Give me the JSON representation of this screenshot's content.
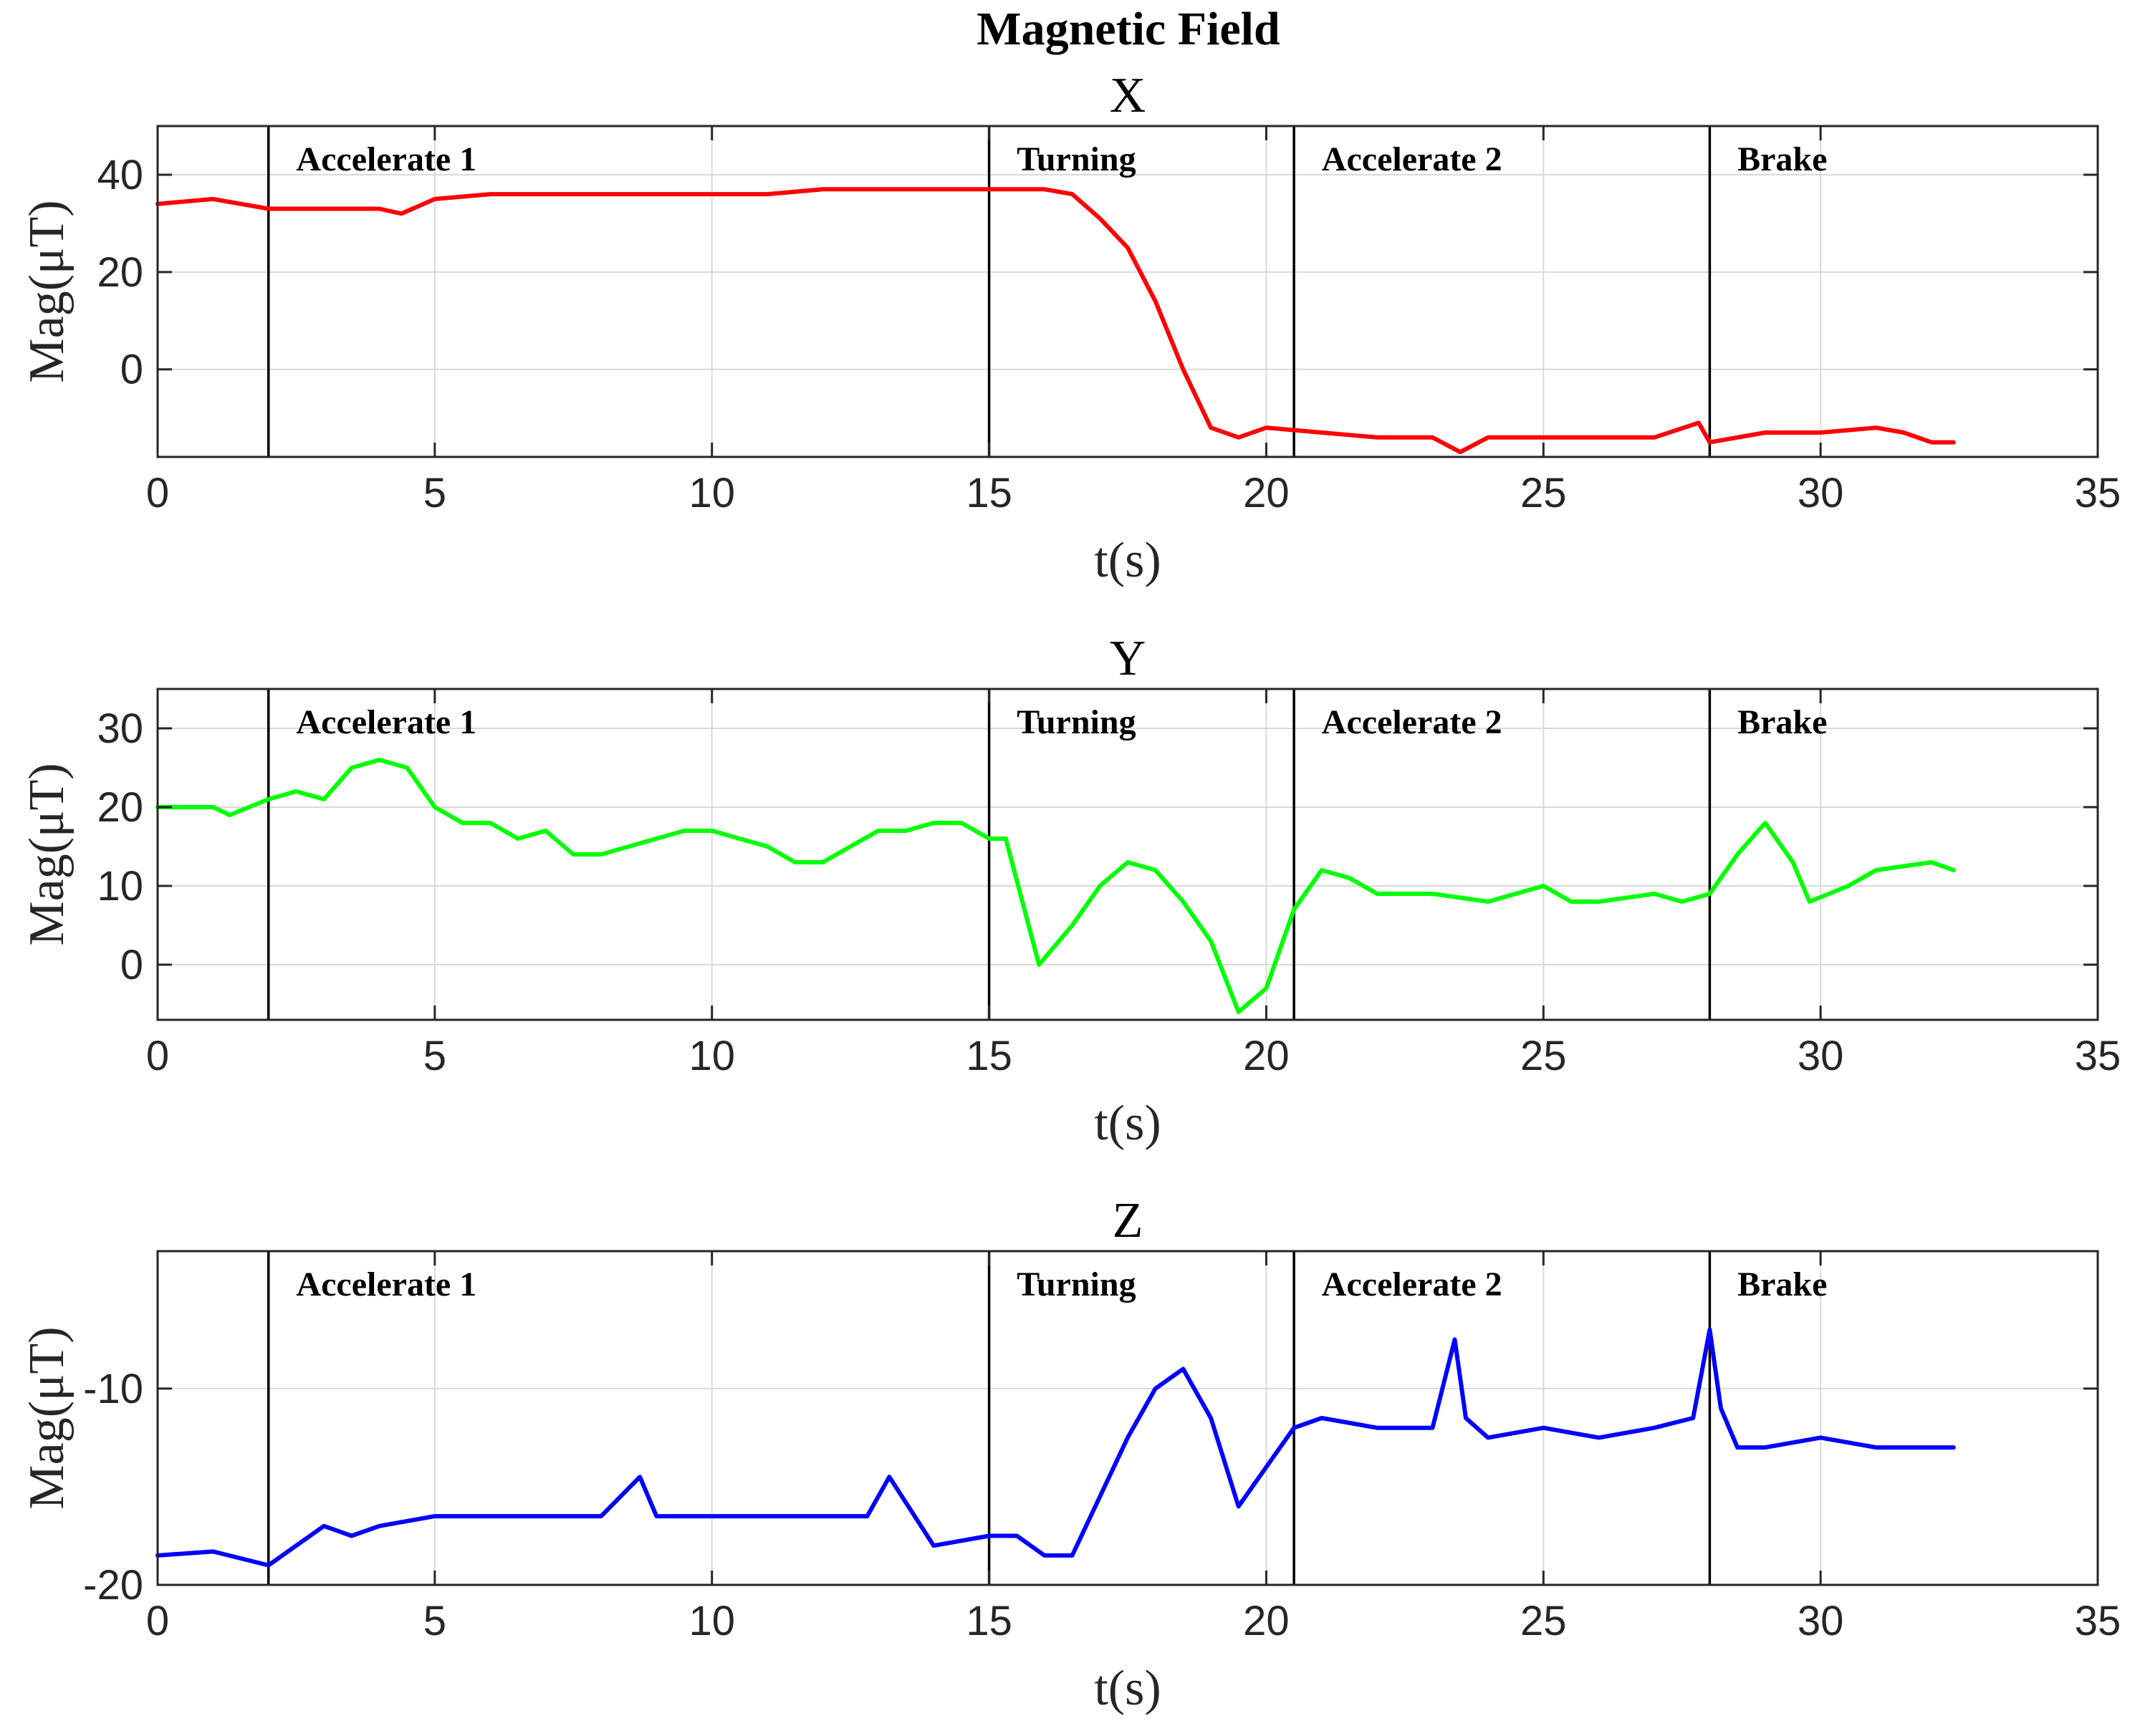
{
  "figure_title": "Magnetic Field",
  "chart_data": [
    {
      "type": "line",
      "title": "X",
      "xlabel": "t(s)",
      "ylabel": "Mag(μT)",
      "xlim": [
        0,
        35
      ],
      "ylim": [
        -18,
        50
      ],
      "xticks": [
        0,
        5,
        10,
        15,
        20,
        25,
        30,
        35
      ],
      "yticks": [
        0,
        20,
        40
      ],
      "grid": true,
      "color": "#ff0000",
      "phase_boundaries": [
        2,
        15,
        20.5,
        28
      ],
      "phases": [
        {
          "label": "Accelerate 1",
          "x": 2.5
        },
        {
          "label": "Turning",
          "x": 15.5
        },
        {
          "label": "Accelerate 2",
          "x": 21
        },
        {
          "label": "Brake",
          "x": 28.5
        }
      ],
      "series": [
        {
          "x": [
            0,
            1,
            2,
            3,
            4,
            4.4,
            5,
            6,
            7,
            8,
            9,
            10,
            11,
            12,
            13,
            14,
            15,
            15.5,
            16,
            16.5,
            17,
            17.5,
            18,
            18.5,
            19,
            19.5,
            20,
            21,
            22,
            23,
            23.5,
            24,
            25,
            26,
            27,
            27.8,
            28,
            29,
            30,
            31,
            31.5,
            32,
            32.4
          ],
          "y": [
            34,
            35,
            33,
            33,
            33,
            32,
            35,
            36,
            36,
            36,
            36,
            36,
            36,
            37,
            37,
            37,
            37,
            37,
            37,
            36,
            31,
            25,
            14,
            0,
            -12,
            -14,
            -12,
            -13,
            -14,
            -14,
            -17,
            -14,
            -14,
            -14,
            -14,
            -11,
            -15,
            -13,
            -13,
            -12,
            -13,
            -15,
            -15
          ]
        }
      ]
    },
    {
      "type": "line",
      "title": "Y",
      "xlabel": "t(s)",
      "ylabel": "Mag(μT)",
      "xlim": [
        0,
        35
      ],
      "ylim": [
        -7,
        35
      ],
      "xticks": [
        0,
        5,
        10,
        15,
        20,
        25,
        30,
        35
      ],
      "yticks": [
        0,
        10,
        20,
        30
      ],
      "grid": true,
      "color": "#00ff00",
      "phase_boundaries": [
        2,
        15,
        20.5,
        28
      ],
      "phases": [
        {
          "label": "Accelerate 1",
          "x": 2.5
        },
        {
          "label": "Turning",
          "x": 15.5
        },
        {
          "label": "Accelerate 2",
          "x": 21
        },
        {
          "label": "Brake",
          "x": 28.5
        }
      ],
      "series": [
        {
          "x": [
            0,
            1,
            1.3,
            2,
            2.5,
            3,
            3.5,
            4,
            4.5,
            5,
            5.5,
            6,
            6.5,
            7,
            7.5,
            8,
            9,
            9.5,
            10,
            11,
            11.5,
            12,
            12.5,
            13,
            13.5,
            14,
            14.5,
            15,
            15.3,
            15.9,
            16.5,
            17,
            17.5,
            18,
            18.5,
            19,
            19.5,
            20,
            20.5,
            21,
            21.5,
            22,
            23,
            24,
            25,
            25.5,
            26,
            27,
            27.5,
            28,
            28.5,
            29,
            29.5,
            29.8,
            30.5,
            31,
            32,
            32.4
          ],
          "y": [
            20,
            20,
            19,
            21,
            22,
            21,
            25,
            26,
            25,
            20,
            18,
            18,
            16,
            17,
            14,
            14,
            16,
            17,
            17,
            15,
            13,
            13,
            15,
            17,
            17,
            18,
            18,
            16,
            16,
            0,
            5,
            10,
            13,
            12,
            8,
            3,
            -6,
            -3,
            7,
            12,
            11,
            9,
            9,
            8,
            10,
            8,
            8,
            9,
            8,
            9,
            14,
            18,
            13,
            8,
            10,
            12,
            13,
            12
          ]
        }
      ]
    },
    {
      "type": "line",
      "title": "Z",
      "xlabel": "t(s)",
      "ylabel": "Mag(μT)",
      "xlim": [
        0,
        35
      ],
      "ylim": [
        -20,
        -3
      ],
      "xticks": [
        0,
        5,
        10,
        15,
        20,
        25,
        30,
        35
      ],
      "yticks": [
        -20,
        -10
      ],
      "grid": true,
      "color": "#0000ff",
      "phase_boundaries": [
        2,
        15,
        20.5,
        28
      ],
      "phases": [
        {
          "label": "Accelerate 1",
          "x": 2.5
        },
        {
          "label": "Turning",
          "x": 15.5
        },
        {
          "label": "Accelerate 2",
          "x": 21
        },
        {
          "label": "Brake",
          "x": 28.5
        }
      ],
      "series": [
        {
          "x": [
            0,
            1,
            2,
            2.5,
            3,
            3.5,
            4,
            5,
            6,
            7,
            8,
            8.7,
            9,
            10,
            11,
            12,
            12.8,
            13.2,
            14,
            15,
            15.5,
            16,
            16.5,
            17,
            17.5,
            18,
            18.5,
            19,
            19.5,
            20,
            20.5,
            21,
            22,
            23,
            23.4,
            23.6,
            24,
            25,
            26,
            27,
            27.7,
            28,
            28.2,
            28.5,
            29,
            30,
            31,
            32,
            32.4
          ],
          "y": [
            -18.5,
            -18.3,
            -19,
            -18,
            -17,
            -17.5,
            -17,
            -16.5,
            -16.5,
            -16.5,
            -16.5,
            -14.5,
            -16.5,
            -16.5,
            -16.5,
            -16.5,
            -16.5,
            -14.5,
            -18,
            -17.5,
            -17.5,
            -18.5,
            -18.5,
            -15.5,
            -12.5,
            -10,
            -9,
            -11.5,
            -16,
            -14,
            -12,
            -11.5,
            -12,
            -12,
            -7.5,
            -11.5,
            -12.5,
            -12,
            -12.5,
            -12,
            -11.5,
            -7,
            -11,
            -13,
            -13,
            -12.5,
            -13,
            -13,
            -13
          ]
        }
      ]
    }
  ]
}
